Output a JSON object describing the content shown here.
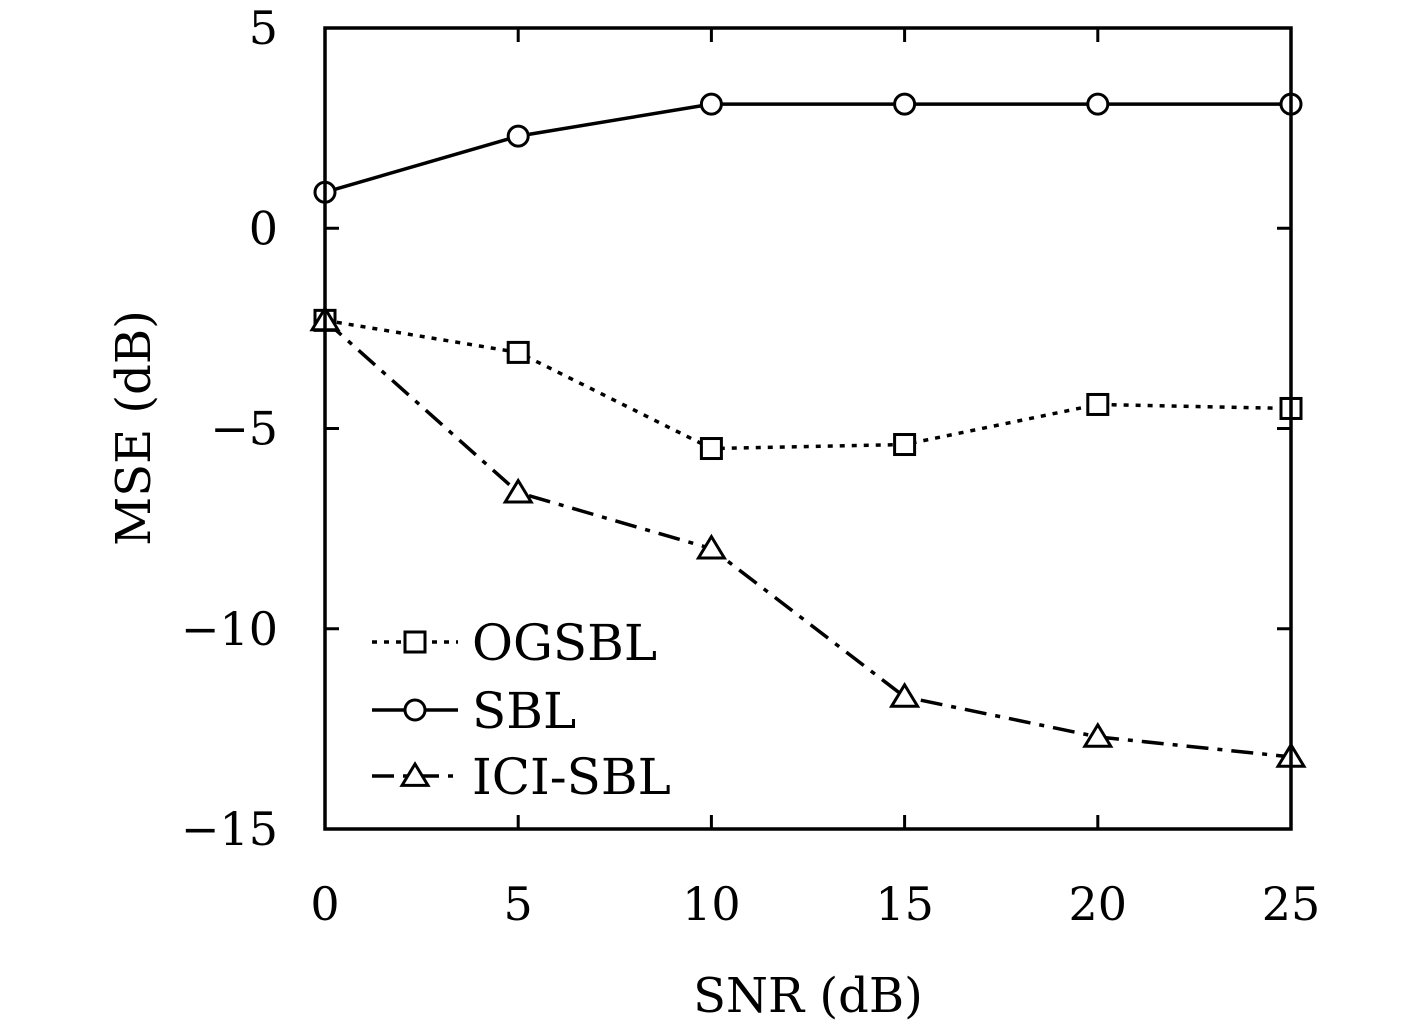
{
  "chart_data": {
    "type": "line",
    "xlabel": "SNR (dB)",
    "ylabel": "MSE (dB)",
    "xlim": [
      0,
      25
    ],
    "ylim": [
      -15,
      5
    ],
    "x_ticks": [
      "0",
      "5",
      "10",
      "15",
      "20",
      "25"
    ],
    "y_ticks": [
      "5",
      "0",
      "−5",
      "−10",
      "−15"
    ],
    "x": [
      0,
      5,
      10,
      15,
      20,
      25
    ],
    "grid": false,
    "legend_position": "bottom-left",
    "series": [
      {
        "name": "OGSBL",
        "marker": "square",
        "line_style": "dotted",
        "color": "#000000",
        "values": [
          -2.3,
          -3.1,
          -5.5,
          -5.4,
          -4.4,
          -4.5
        ]
      },
      {
        "name": "SBL",
        "marker": "circle",
        "line_style": "solid",
        "color": "#000000",
        "values": [
          0.9,
          2.3,
          3.1,
          3.1,
          3.1,
          3.1
        ]
      },
      {
        "name": "ICI-SBL",
        "marker": "triangle",
        "line_style": "dash-dot",
        "color": "#000000",
        "values": [
          -2.3,
          -6.6,
          -8.0,
          -11.7,
          -12.7,
          -13.2
        ]
      }
    ]
  }
}
